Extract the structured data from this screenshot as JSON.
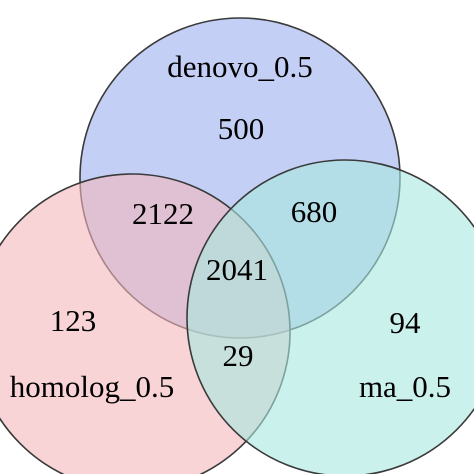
{
  "venn": {
    "sets": [
      {
        "key": "denovo",
        "name": "denovo_0.5",
        "color": "#b3c2f2"
      },
      {
        "key": "homolog",
        "name": "homolog_0.5",
        "color": "#f4b7bd"
      },
      {
        "key": "ma",
        "name": "ma_0.5",
        "color": "#a9e8e0"
      }
    ],
    "regions": {
      "denovo_only": "500",
      "homolog_only": "123",
      "ma_only": "94",
      "denovo_homolog": "2122",
      "denovo_ma": "680",
      "homolog_ma": "29",
      "all_three": "2041"
    }
  }
}
